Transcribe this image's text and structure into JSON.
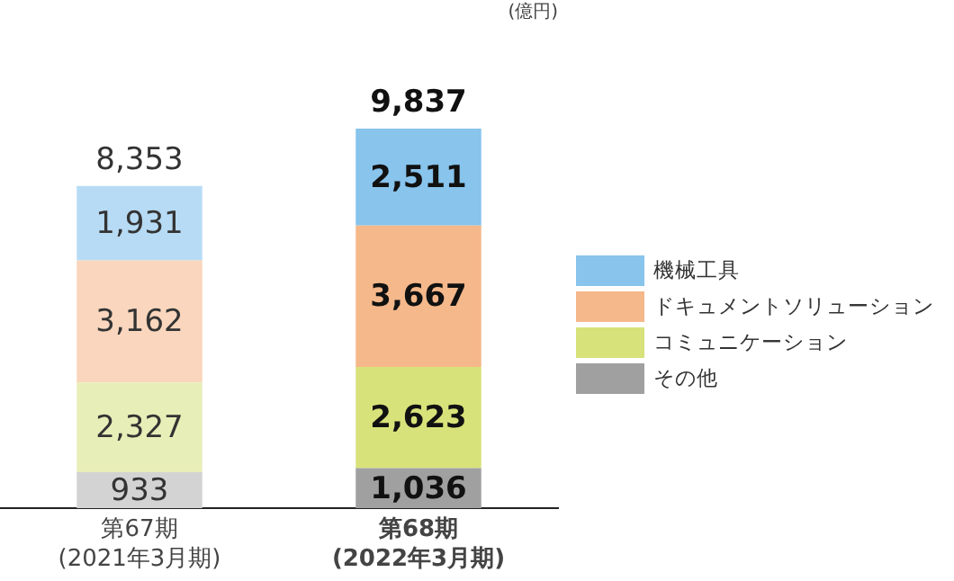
{
  "chart_data": {
    "type": "bar",
    "stacked": true,
    "annotations": [
      "(億円)"
    ],
    "categories": [
      "第67期\n(2021年3月期)",
      "第68期\n(2022年3月期)"
    ],
    "series": [
      {
        "name": "その他",
        "color": "#a0a0a0",
        "colors": [
          "#d3d3d3",
          "#a0a0a0"
        ],
        "values": [
          933,
          1036
        ],
        "value_labels": [
          "933",
          "1,036"
        ]
      },
      {
        "name": "コミュニケーション",
        "color": "#d8e27a",
        "colors": [
          "#e8eeb8",
          "#d8e27a"
        ],
        "values": [
          2327,
          2623
        ],
        "value_labels": [
          "2,327",
          "2,623"
        ]
      },
      {
        "name": "ドキュメントソリューション",
        "color": "#f5b88b",
        "colors": [
          "#f9d6bd",
          "#f5b88b"
        ],
        "values": [
          3162,
          3667
        ],
        "value_labels": [
          "3,162",
          "3,667"
        ]
      },
      {
        "name": "機械工具",
        "color": "#88c4ec",
        "colors": [
          "#b7dbf4",
          "#88c4ec"
        ],
        "values": [
          1931,
          2511
        ],
        "value_labels": [
          "1,931",
          "2,511"
        ]
      }
    ],
    "totals": [
      "8,353",
      "9,837"
    ],
    "legend": "right",
    "tick_labels": "x",
    "grid": false
  }
}
